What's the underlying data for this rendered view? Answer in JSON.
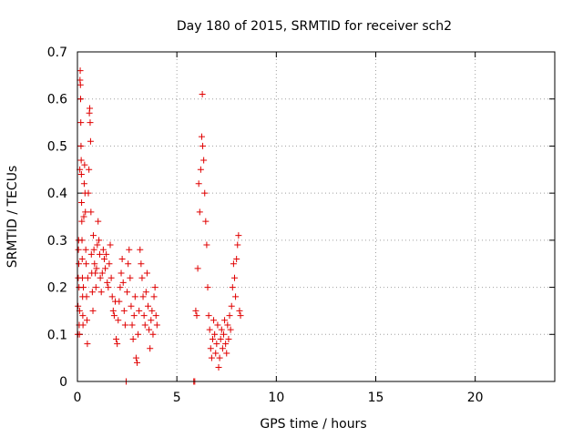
{
  "chart_data": {
    "type": "scatter",
    "title": "Day 180 of 2015, SRMTID for receiver sch2",
    "xlabel": "GPS time / hours",
    "ylabel": "SRMTID / TECUs",
    "xlim": [
      0,
      24
    ],
    "ylim": [
      0,
      0.7
    ],
    "xticks": [
      0,
      5,
      10,
      15,
      20
    ],
    "xtick_labels": [
      "0",
      "5",
      "10",
      "15",
      "20"
    ],
    "yticks": [
      0,
      0.1,
      0.2,
      0.3,
      0.4,
      0.5,
      0.6,
      0.7
    ],
    "ytick_labels": [
      "0",
      "0.1",
      "0.2",
      "0.3",
      "0.4",
      "0.5",
      "0.6",
      "0.7"
    ],
    "grid": true,
    "marker": "+",
    "marker_color": "#e00000",
    "series": [
      {
        "name": "SRMTID",
        "points": [
          [
            0.02,
            0.1
          ],
          [
            0.03,
            0.16
          ],
          [
            0.04,
            0.22
          ],
          [
            0.05,
            0.28
          ],
          [
            0.06,
            0.3
          ],
          [
            0.07,
            0.25
          ],
          [
            0.08,
            0.2
          ],
          [
            0.09,
            0.12
          ],
          [
            0.1,
            0.1
          ],
          [
            0.11,
            0.15
          ],
          [
            0.12,
            0.45
          ],
          [
            0.13,
            0.64
          ],
          [
            0.14,
            0.66
          ],
          [
            0.15,
            0.63
          ],
          [
            0.16,
            0.6
          ],
          [
            0.17,
            0.55
          ],
          [
            0.18,
            0.5
          ],
          [
            0.19,
            0.47
          ],
          [
            0.2,
            0.44
          ],
          [
            0.21,
            0.38
          ],
          [
            0.22,
            0.34
          ],
          [
            0.23,
            0.3
          ],
          [
            0.24,
            0.26
          ],
          [
            0.25,
            0.22
          ],
          [
            0.26,
            0.18
          ],
          [
            0.27,
            0.14
          ],
          [
            0.28,
            0.12
          ],
          [
            0.3,
            0.2
          ],
          [
            0.32,
            0.35
          ],
          [
            0.34,
            0.42
          ],
          [
            0.36,
            0.46
          ],
          [
            0.38,
            0.4
          ],
          [
            0.4,
            0.36
          ],
          [
            0.42,
            0.28
          ],
          [
            0.44,
            0.25
          ],
          [
            0.46,
            0.18
          ],
          [
            0.48,
            0.13
          ],
          [
            0.5,
            0.08
          ],
          [
            0.52,
            0.22
          ],
          [
            0.55,
            0.4
          ],
          [
            0.58,
            0.45
          ],
          [
            0.6,
            0.57
          ],
          [
            0.62,
            0.58
          ],
          [
            0.64,
            0.55
          ],
          [
            0.66,
            0.51
          ],
          [
            0.68,
            0.36
          ],
          [
            0.7,
            0.27
          ],
          [
            0.72,
            0.23
          ],
          [
            0.75,
            0.19
          ],
          [
            0.78,
            0.15
          ],
          [
            0.8,
            0.31
          ],
          [
            0.83,
            0.28
          ],
          [
            0.86,
            0.25
          ],
          [
            0.9,
            0.23
          ],
          [
            0.93,
            0.2
          ],
          [
            0.96,
            0.24
          ],
          [
            1.0,
            0.29
          ],
          [
            1.04,
            0.34
          ],
          [
            1.08,
            0.3
          ],
          [
            1.12,
            0.27
          ],
          [
            1.15,
            0.22
          ],
          [
            1.2,
            0.19
          ],
          [
            1.25,
            0.23
          ],
          [
            1.3,
            0.28
          ],
          [
            1.35,
            0.26
          ],
          [
            1.4,
            0.24
          ],
          [
            1.45,
            0.27
          ],
          [
            1.5,
            0.21
          ],
          [
            1.55,
            0.2
          ],
          [
            1.6,
            0.25
          ],
          [
            1.65,
            0.29
          ],
          [
            1.7,
            0.22
          ],
          [
            1.75,
            0.18
          ],
          [
            1.8,
            0.15
          ],
          [
            1.85,
            0.14
          ],
          [
            1.9,
            0.17
          ],
          [
            1.95,
            0.09
          ],
          [
            2.0,
            0.08
          ],
          [
            2.05,
            0.13
          ],
          [
            2.1,
            0.17
          ],
          [
            2.15,
            0.2
          ],
          [
            2.2,
            0.23
          ],
          [
            2.25,
            0.26
          ],
          [
            2.3,
            0.21
          ],
          [
            2.35,
            0.15
          ],
          [
            2.4,
            0.12
          ],
          [
            2.45,
            0.0
          ],
          [
            2.5,
            0.19
          ],
          [
            2.55,
            0.25
          ],
          [
            2.6,
            0.28
          ],
          [
            2.65,
            0.22
          ],
          [
            2.7,
            0.16
          ],
          [
            2.75,
            0.12
          ],
          [
            2.8,
            0.09
          ],
          [
            2.85,
            0.14
          ],
          [
            2.9,
            0.18
          ],
          [
            2.95,
            0.05
          ],
          [
            3.0,
            0.04
          ],
          [
            3.05,
            0.1
          ],
          [
            3.1,
            0.15
          ],
          [
            3.15,
            0.28
          ],
          [
            3.2,
            0.25
          ],
          [
            3.25,
            0.22
          ],
          [
            3.3,
            0.18
          ],
          [
            3.35,
            0.14
          ],
          [
            3.4,
            0.12
          ],
          [
            3.45,
            0.19
          ],
          [
            3.5,
            0.23
          ],
          [
            3.55,
            0.16
          ],
          [
            3.6,
            0.11
          ],
          [
            3.65,
            0.07
          ],
          [
            3.7,
            0.13
          ],
          [
            3.75,
            0.15
          ],
          [
            3.8,
            0.1
          ],
          [
            3.85,
            0.18
          ],
          [
            3.9,
            0.2
          ],
          [
            3.95,
            0.14
          ],
          [
            4.0,
            0.12
          ],
          [
            5.85,
            0.0
          ],
          [
            5.9,
            0.0
          ],
          [
            5.95,
            0.15
          ],
          [
            6.0,
            0.14
          ],
          [
            6.05,
            0.24
          ],
          [
            6.1,
            0.42
          ],
          [
            6.15,
            0.36
          ],
          [
            6.2,
            0.45
          ],
          [
            6.25,
            0.52
          ],
          [
            6.28,
            0.61
          ],
          [
            6.3,
            0.5
          ],
          [
            6.35,
            0.47
          ],
          [
            6.4,
            0.4
          ],
          [
            6.45,
            0.34
          ],
          [
            6.5,
            0.29
          ],
          [
            6.55,
            0.2
          ],
          [
            6.6,
            0.14
          ],
          [
            6.65,
            0.11
          ],
          [
            6.7,
            0.07
          ],
          [
            6.75,
            0.05
          ],
          [
            6.8,
            0.09
          ],
          [
            6.85,
            0.13
          ],
          [
            6.9,
            0.1
          ],
          [
            6.95,
            0.06
          ],
          [
            7.0,
            0.08
          ],
          [
            7.05,
            0.12
          ],
          [
            7.1,
            0.03
          ],
          [
            7.15,
            0.05
          ],
          [
            7.2,
            0.09
          ],
          [
            7.25,
            0.11
          ],
          [
            7.3,
            0.07
          ],
          [
            7.35,
            0.1
          ],
          [
            7.4,
            0.13
          ],
          [
            7.45,
            0.08
          ],
          [
            7.5,
            0.06
          ],
          [
            7.55,
            0.12
          ],
          [
            7.6,
            0.09
          ],
          [
            7.65,
            0.14
          ],
          [
            7.7,
            0.11
          ],
          [
            7.75,
            0.16
          ],
          [
            7.8,
            0.2
          ],
          [
            7.85,
            0.25
          ],
          [
            7.9,
            0.22
          ],
          [
            7.95,
            0.18
          ],
          [
            8.0,
            0.26
          ],
          [
            8.05,
            0.29
          ],
          [
            8.1,
            0.31
          ],
          [
            8.15,
            0.15
          ],
          [
            8.2,
            0.14
          ]
        ]
      }
    ]
  }
}
